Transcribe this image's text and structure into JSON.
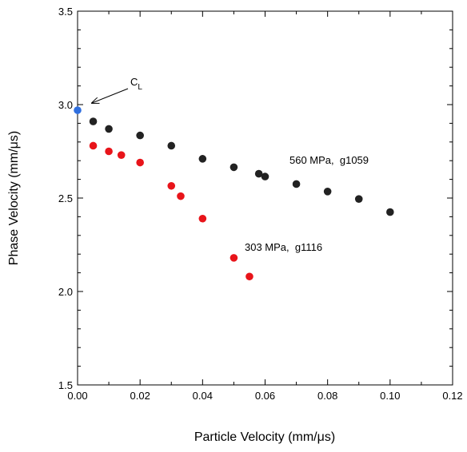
{
  "chart_data": {
    "type": "scatter",
    "x_label": "Particle Velocity (mm/μs)",
    "y_label": "Phase Velocity  (mm/μs)",
    "xlim": [
      0,
      0.12
    ],
    "ylim": [
      1.5,
      3.5
    ],
    "xticks": [
      {
        "value": 0,
        "label": "0.00"
      },
      {
        "value": 0.02,
        "label": "0.02"
      },
      {
        "value": 0.04,
        "label": "0.04"
      },
      {
        "value": 0.06,
        "label": "0.06"
      },
      {
        "value": 0.08,
        "label": "0.08"
      },
      {
        "value": 0.1,
        "label": "0.10"
      },
      {
        "value": 0.12,
        "label": "0.12"
      }
    ],
    "yticks": [
      1.5,
      {
        "value": 2,
        "label": "2.0"
      },
      2.5,
      {
        "value": 3,
        "label": "3.0"
      },
      3.5
    ],
    "series": [
      {
        "name": "560 MPa,  g1059",
        "color": "#222222",
        "x": [
          0.005,
          0.01,
          0.02,
          0.03,
          0.04,
          0.05,
          0.058,
          0.06,
          0.07,
          0.08,
          0.09,
          0.1
        ],
        "values": [
          2.91,
          2.87,
          2.835,
          2.78,
          2.71,
          2.665,
          2.63,
          2.615,
          2.575,
          2.535,
          2.495,
          2.425
        ]
      },
      {
        "name": "303 MPa,  g1116",
        "color": "#e8141a",
        "x": [
          0.005,
          0.01,
          0.014,
          0.02,
          0.03,
          0.033,
          0.04,
          0.05,
          0.055
        ],
        "values": [
          2.78,
          2.75,
          2.73,
          2.69,
          2.565,
          2.51,
          2.39,
          2.18,
          2.08
        ]
      },
      {
        "color": "#2f6fdf",
        "x": [
          0
        ],
        "values": [
          2.97
        ]
      }
    ],
    "annotation": {
      "text": "C",
      "subscript": "L"
    }
  }
}
